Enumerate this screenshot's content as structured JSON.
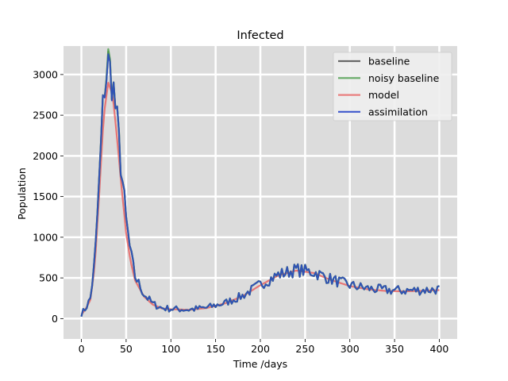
{
  "chart_data": {
    "type": "line",
    "title": "Infected",
    "xlabel": "Time /days",
    "ylabel": "Population",
    "xlim": [
      -20,
      420
    ],
    "ylim": [
      -250,
      3350
    ],
    "xticks": [
      0,
      50,
      100,
      150,
      200,
      250,
      300,
      350,
      400
    ],
    "yticks": [
      0,
      500,
      1000,
      1500,
      2000,
      2500,
      3000
    ],
    "grid": true,
    "legend_position": "top-right",
    "background_color": "#dcdcdc",
    "series": [
      {
        "name": "baseline",
        "color": "#505050",
        "x": [
          0,
          5,
          10,
          15,
          20,
          25,
          30,
          35,
          40,
          45,
          50,
          55,
          60,
          70,
          80,
          90,
          100,
          120,
          140,
          160,
          180,
          200,
          220,
          240,
          260,
          280,
          300,
          320,
          340,
          360,
          380,
          400
        ],
        "y": [
          60,
          130,
          250,
          700,
          1700,
          2800,
          3150,
          2900,
          2400,
          1800,
          1200,
          800,
          520,
          300,
          180,
          130,
          120,
          110,
          135,
          190,
          280,
          420,
          540,
          600,
          570,
          480,
          410,
          370,
          350,
          345,
          350,
          360
        ]
      },
      {
        "name": "noisy baseline",
        "color": "#4e9e4e",
        "x": [
          0,
          5,
          10,
          15,
          20,
          25,
          30,
          35,
          40,
          45,
          50,
          55,
          60,
          70,
          80,
          90,
          100,
          120,
          140,
          160,
          180,
          200,
          220,
          240,
          260,
          280,
          300,
          320,
          340,
          360,
          380,
          400
        ],
        "y": [
          60,
          130,
          250,
          700,
          1700,
          2800,
          3180,
          2900,
          2400,
          1800,
          1200,
          800,
          520,
          300,
          180,
          130,
          120,
          110,
          135,
          190,
          280,
          420,
          540,
          600,
          570,
          480,
          410,
          370,
          350,
          345,
          350,
          360
        ]
      },
      {
        "name": "model",
        "color": "#e86a6a",
        "x": [
          0,
          5,
          10,
          15,
          20,
          25,
          30,
          35,
          40,
          45,
          50,
          55,
          60,
          70,
          80,
          90,
          100,
          120,
          140,
          160,
          180,
          200,
          220,
          240,
          260,
          280,
          300,
          320,
          340,
          360,
          380,
          400
        ],
        "y": [
          50,
          120,
          230,
          650,
          1550,
          2500,
          2900,
          2750,
          2200,
          1600,
          1050,
          700,
          470,
          270,
          170,
          125,
          115,
          108,
          130,
          185,
          275,
          410,
          530,
          590,
          560,
          470,
          400,
          360,
          340,
          335,
          340,
          350
        ]
      },
      {
        "name": "assimilation",
        "color": "#2a46c8",
        "x": [
          0,
          5,
          10,
          15,
          20,
          25,
          30,
          35,
          40,
          45,
          50,
          55,
          60,
          70,
          80,
          90,
          100,
          120,
          140,
          160,
          180,
          200,
          220,
          240,
          260,
          280,
          300,
          320,
          340,
          360,
          380,
          400
        ],
        "y": [
          60,
          130,
          250,
          700,
          1700,
          2800,
          3120,
          2900,
          2400,
          1800,
          1200,
          800,
          520,
          300,
          180,
          130,
          120,
          110,
          135,
          190,
          280,
          420,
          540,
          600,
          570,
          480,
          410,
          370,
          350,
          345,
          350,
          360
        ]
      }
    ]
  }
}
